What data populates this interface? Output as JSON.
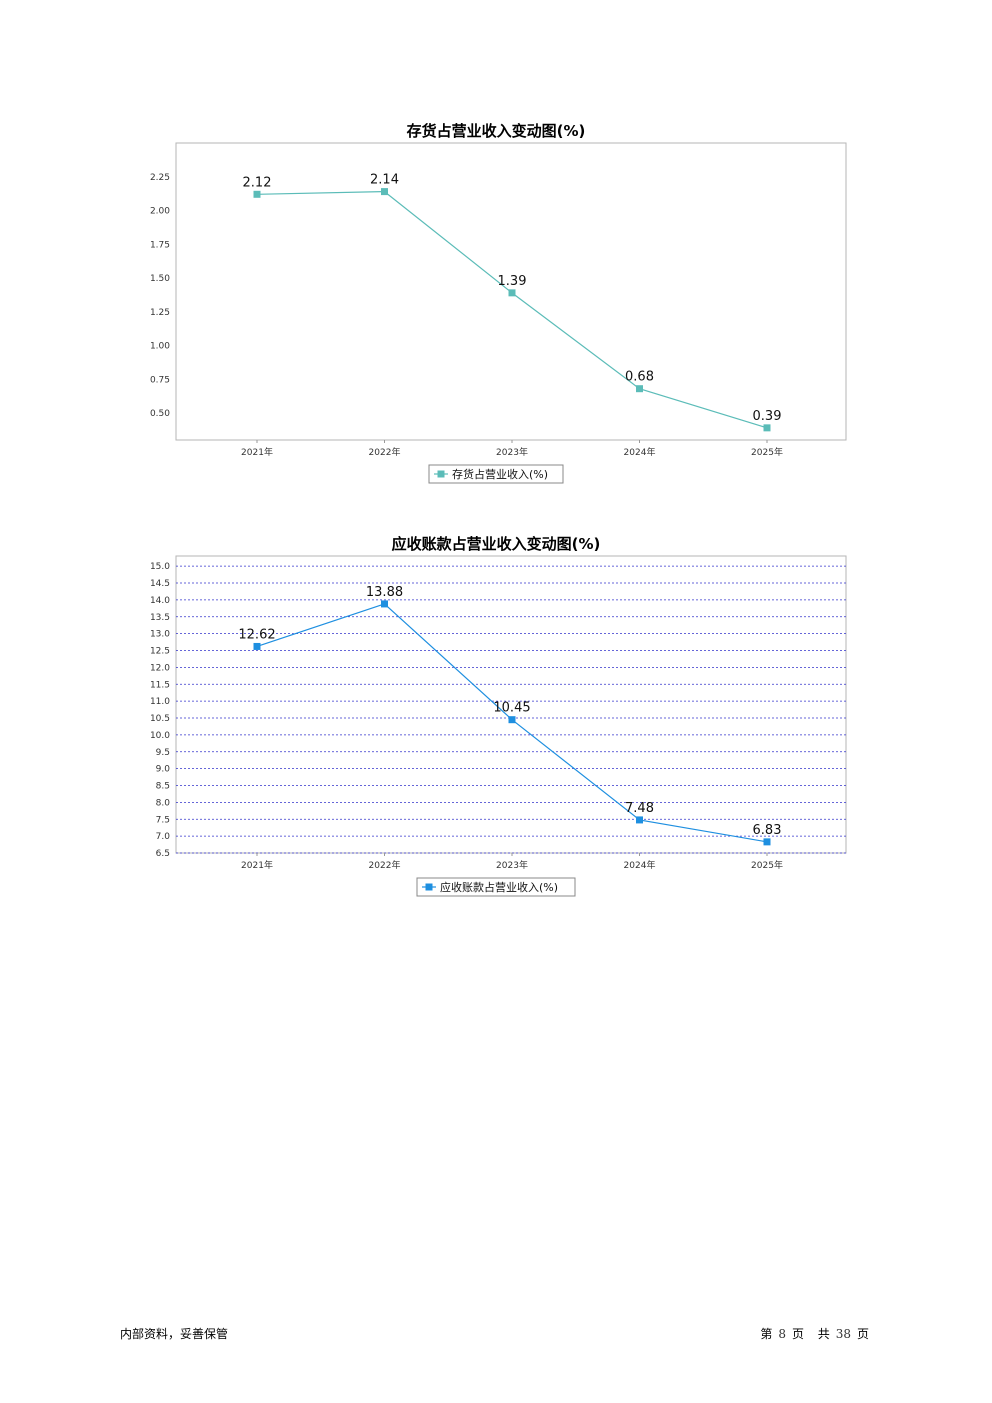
{
  "chart_data": [
    {
      "type": "line",
      "title": "存货占营业收入变动图(%)",
      "categories": [
        "2021年",
        "2022年",
        "2023年",
        "2024年",
        "2025年"
      ],
      "series": [
        {
          "name": "存货占营业收入(%)",
          "values": [
            2.12,
            2.14,
            1.39,
            0.68,
            0.39
          ],
          "color": "#5bbcb8"
        }
      ],
      "yticks": [
        "2.25",
        "2.00",
        "1.75",
        "1.50",
        "1.25",
        "1.00",
        "0.75",
        "0.50"
      ],
      "ylim": [
        0.3,
        2.5
      ],
      "grid": false,
      "legend": "bottom-center"
    },
    {
      "type": "line",
      "title": "应收账款占营业收入变动图(%)",
      "categories": [
        "2021年",
        "2022年",
        "2023年",
        "2024年",
        "2025年"
      ],
      "series": [
        {
          "name": "应收账款占营业收入(%)",
          "values": [
            12.62,
            13.88,
            10.45,
            7.48,
            6.83
          ],
          "color": "#1e8fe0"
        }
      ],
      "yticks": [
        "15.0",
        "14.5",
        "14.0",
        "13.5",
        "13.0",
        "12.5",
        "12.0",
        "11.5",
        "11.0",
        "10.5",
        "10.0",
        "9.5",
        "9.0",
        "8.5",
        "8.0",
        "7.5",
        "7.0",
        "6.5"
      ],
      "ylim": [
        6.5,
        15.3
      ],
      "grid": true,
      "grid_color": "#3333cc",
      "legend": "bottom-center"
    }
  ],
  "footer": {
    "left": "内部资料，妥善保管",
    "page_prefix": "第",
    "page_number": "8",
    "page_unit": "页",
    "total_prefix": "共",
    "total_pages": "38",
    "total_unit": "页"
  }
}
